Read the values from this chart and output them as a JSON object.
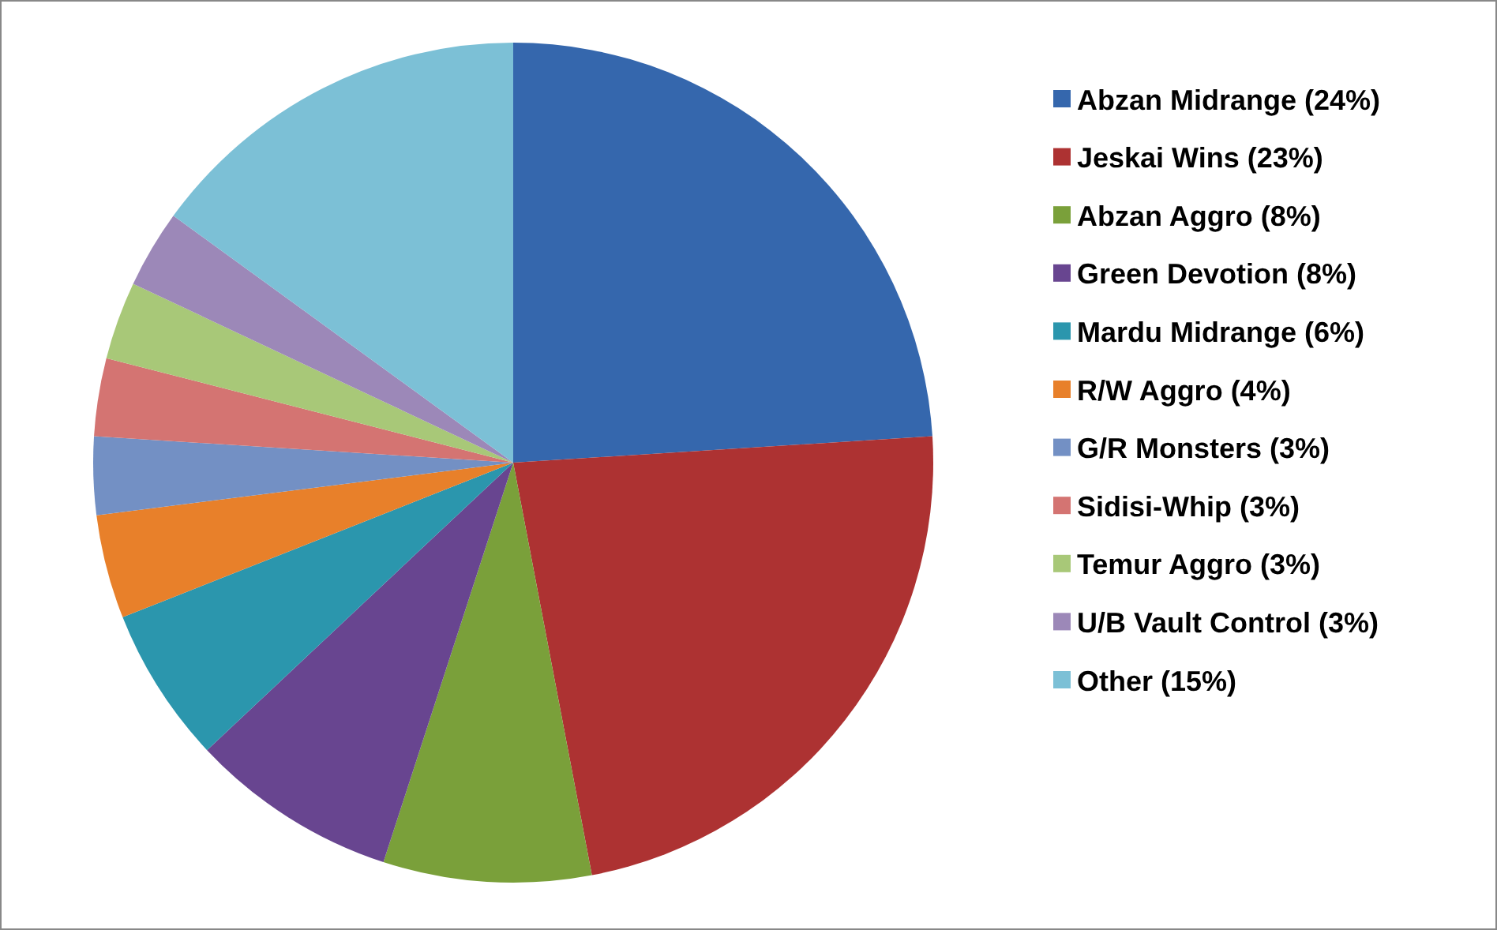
{
  "chart_data": {
    "type": "pie",
    "categories": [
      "Abzan Midrange (24%)",
      "Jeskai Wins (23%)",
      "Abzan Aggro (8%)",
      "Green Devotion (8%)",
      "Mardu Midrange (6%)",
      "R/W Aggro (4%)",
      "G/R Monsters (3%)",
      "Sidisi-Whip (3%)",
      "Temur Aggro (3%)",
      "U/B Vault Control (3%)",
      "Other (15%)"
    ],
    "values": [
      24,
      23,
      8,
      8,
      6,
      4,
      3,
      3,
      3,
      3,
      15
    ],
    "colors": [
      "#3567ad",
      "#ad3232",
      "#7aa03a",
      "#684590",
      "#2b96ad",
      "#e8802a",
      "#7390c4",
      "#d47472",
      "#a8c878",
      "#9c88b8",
      "#7cc0d6"
    ],
    "legend": "right"
  }
}
